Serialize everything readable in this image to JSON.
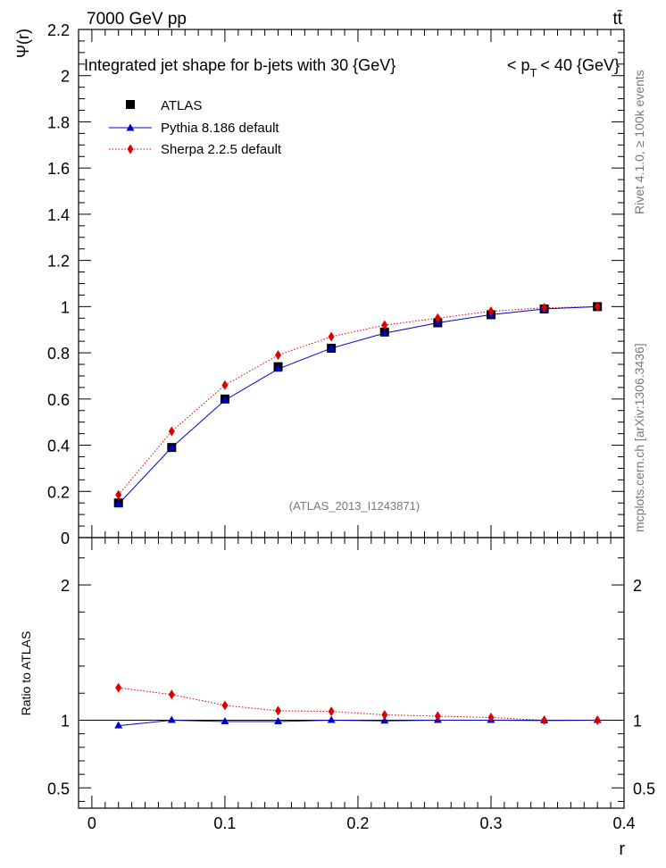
{
  "chart_data": {
    "type": "line",
    "header_left": "7000 GeV pp",
    "header_right": "tt̄",
    "title": "Integrated jet shape for b-jets with 30 {GeV}",
    "title_right": "< p_T < 40 {GeV}",
    "title_right_parts": {
      "lt": "<",
      "p": "p",
      "sub": "T",
      "rest": "< 40 {GeV}"
    },
    "analysis_label": "(ATLAS_2013_I1243871)",
    "side_label_top": "Rivet 4.1.0, ≥ 100k events",
    "side_label_bottom": "mcplots.cern.ch [arXiv:1306.3436]",
    "xlabel": "r",
    "ylabel_main": "Ψ(r)",
    "ylabel_ratio": "Ratio to ATLAS",
    "xlim": [
      -0.01,
      0.4
    ],
    "ylim_main": [
      0,
      2.2
    ],
    "ylim_ratio": [
      0.35,
      2.35
    ],
    "x_ticks": [
      0,
      0.1,
      0.2,
      0.3,
      0.4
    ],
    "x_tick_labels": [
      "0",
      "0.1",
      "0.2",
      "0.3",
      "0.4"
    ],
    "y_ticks_main": [
      0,
      0.2,
      0.4,
      0.6,
      0.8,
      1,
      1.2,
      1.4,
      1.6,
      1.8,
      2,
      2.2
    ],
    "y_tick_labels_main": [
      "0",
      "0.2",
      "0.4",
      "0.6",
      "0.8",
      "1",
      "1.2",
      "1.4",
      "1.6",
      "1.8",
      "2",
      "2.2"
    ],
    "y_ticks_ratio": [
      0.5,
      1,
      2
    ],
    "y_tick_labels_ratio": [
      "0.5",
      "1",
      "2"
    ],
    "x": [
      0.02,
      0.06,
      0.1,
      0.14,
      0.18,
      0.22,
      0.26,
      0.3,
      0.34,
      0.38
    ],
    "series": [
      {
        "name": "ATLAS",
        "marker": "square",
        "color": "#000000",
        "values": [
          0.15,
          0.39,
          0.6,
          0.74,
          0.82,
          0.89,
          0.93,
          0.965,
          0.99,
          1.0
        ]
      },
      {
        "name": "Pythia 8.186 default",
        "marker": "triangle",
        "color": "#0000cc",
        "line": "solid",
        "values": [
          0.145,
          0.39,
          0.595,
          0.73,
          0.82,
          0.885,
          0.93,
          0.965,
          0.99,
          1.0
        ],
        "ratio": [
          0.96,
          1.0,
          0.99,
          0.99,
          1.0,
          0.995,
          1.0,
          1.0,
          0.998,
          1.0
        ]
      },
      {
        "name": "Sherpa 2.2.5 default",
        "marker": "diamond",
        "color": "#dd0000",
        "line": "dotted",
        "values": [
          0.185,
          0.46,
          0.66,
          0.79,
          0.87,
          0.92,
          0.95,
          0.98,
          0.995,
          1.0
        ],
        "ratio": [
          1.24,
          1.19,
          1.11,
          1.07,
          1.065,
          1.04,
          1.03,
          1.02,
          1.0,
          1.0
        ]
      }
    ]
  }
}
